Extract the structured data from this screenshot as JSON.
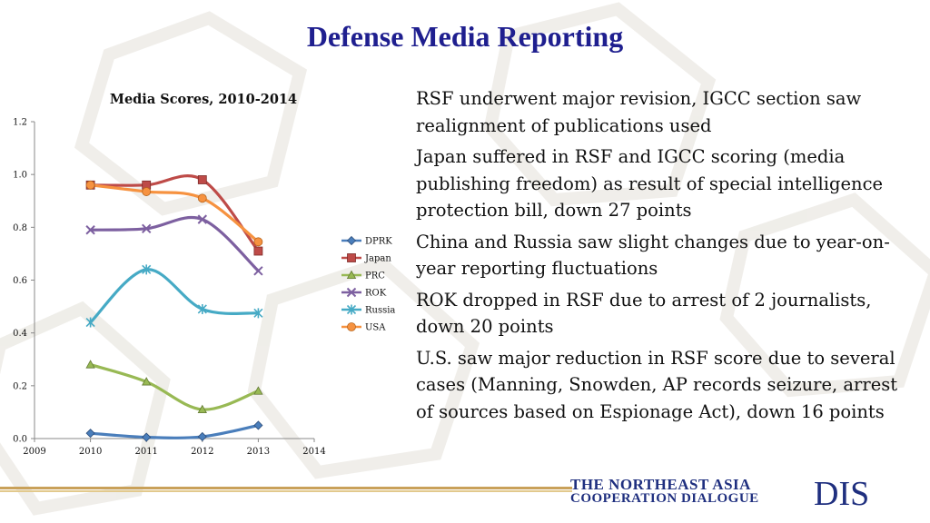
{
  "slide": {
    "title": "Defense Media Reporting",
    "bullets": [
      "RSF underwent major revision, IGCC section saw realignment of publications used",
      "Japan suffered in RSF and IGCC scoring (media publishing freedom) as result of special intelligence protection bill, down 27 points",
      "China and Russia saw slight changes due to year-on-year reporting fluctuations",
      "ROK dropped in RSF due to arrest of 2 journalists, down 20 points",
      "U.S. saw major reduction in RSF score due to several cases (Manning, Snowden, AP records seizure, arrest of sources based on Espionage Act), down 16 points"
    ],
    "footer": {
      "line1": "THE NORTHEAST ASIA",
      "line2": "COOPERATION DIALOGUE",
      "logo": "DIS"
    }
  },
  "chart_data": {
    "type": "line",
    "title": "Media Scores, 2010-2014",
    "xlabel": "",
    "ylabel": "",
    "x": [
      2010,
      2011,
      2012,
      2013
    ],
    "xlim": [
      2009,
      2014
    ],
    "xticks": [
      "2009",
      "2010",
      "2011",
      "2012",
      "2013",
      "2014"
    ],
    "ylim": [
      0,
      1.2
    ],
    "yticks": [
      "0.0",
      "0.2",
      "0.4",
      "0.6",
      "0.8",
      "1.0",
      "1.2"
    ],
    "smooth": true,
    "legend_position": "right",
    "series": [
      {
        "name": "DPRK",
        "values": [
          0.02,
          0.005,
          0.007,
          0.05
        ],
        "color": "#4a7ebb",
        "marker": "diamond"
      },
      {
        "name": "Japan",
        "values": [
          0.96,
          0.96,
          0.98,
          0.71
        ],
        "color": "#be4b48",
        "marker": "square"
      },
      {
        "name": "PRC",
        "values": [
          0.28,
          0.215,
          0.11,
          0.18
        ],
        "color": "#98b954",
        "marker": "triangle"
      },
      {
        "name": "ROK",
        "values": [
          0.79,
          0.795,
          0.83,
          0.635
        ],
        "color": "#7d60a0",
        "marker": "x"
      },
      {
        "name": "Russia",
        "values": [
          0.44,
          0.64,
          0.49,
          0.475
        ],
        "color": "#46aac5",
        "marker": "star"
      },
      {
        "name": "USA",
        "values": [
          0.96,
          0.935,
          0.91,
          0.745
        ],
        "color": "#f69240",
        "marker": "circle"
      }
    ]
  }
}
